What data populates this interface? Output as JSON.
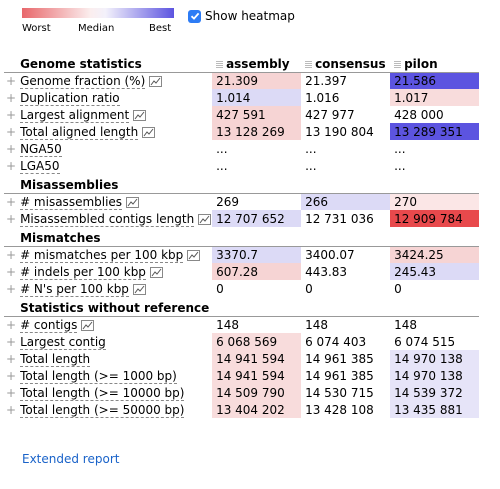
{
  "legend": {
    "worst": "Worst",
    "median": "Median",
    "best": "Best"
  },
  "heatmap_toggle": {
    "label": "Show heatmap",
    "checked": true
  },
  "columns": [
    "assembly",
    "consensus",
    "pilon"
  ],
  "sections": [
    {
      "title": "Genome statistics",
      "rows": [
        {
          "name": "Genome fraction (%)",
          "plot": true,
          "values": [
            "21.309",
            "21.397",
            "21.586"
          ],
          "colors": [
            "#f6d4d4",
            "#ffffff",
            "#5c54e0"
          ]
        },
        {
          "name": "Duplication ratio",
          "plot": false,
          "values": [
            "1.014",
            "1.016",
            "1.017"
          ],
          "colors": [
            "#dcdaf6",
            "#ffffff",
            "#f8dcdc"
          ]
        },
        {
          "name": "Largest alignment",
          "plot": true,
          "values": [
            "427 591",
            "427 977",
            "428 000"
          ],
          "colors": [
            "#f6d4d4",
            "#ffffff",
            "#ffffff"
          ]
        },
        {
          "name": "Total aligned length",
          "plot": true,
          "values": [
            "13 128 269",
            "13 190 804",
            "13 289 351"
          ],
          "colors": [
            "#f6d4d4",
            "#ffffff",
            "#5c54e0"
          ]
        },
        {
          "name": "NGA50",
          "plot": false,
          "values": [
            "...",
            "...",
            "..."
          ],
          "colors": [
            "#ffffff",
            "#ffffff",
            "#ffffff"
          ]
        },
        {
          "name": "LGA50",
          "plot": false,
          "values": [
            "...",
            "...",
            "..."
          ],
          "colors": [
            "#ffffff",
            "#ffffff",
            "#ffffff"
          ]
        }
      ]
    },
    {
      "title": "Misassemblies",
      "rows": [
        {
          "name": "# misassemblies",
          "plot": true,
          "values": [
            "269",
            "266",
            "270"
          ],
          "colors": [
            "#ffffff",
            "#dcdaf6",
            "#fbe6e6"
          ]
        },
        {
          "name": "Misassembled contigs length",
          "plot": true,
          "values": [
            "12 707 652",
            "12 731 036",
            "12 909 784"
          ],
          "colors": [
            "#dcdaf6",
            "#ffffff",
            "#e8494c"
          ]
        }
      ]
    },
    {
      "title": "Mismatches",
      "rows": [
        {
          "name": "# mismatches per 100 kbp",
          "plot": true,
          "values": [
            "3370.7",
            "3400.07",
            "3424.25"
          ],
          "colors": [
            "#dcdaf6",
            "#ffffff",
            "#f6d4d4"
          ]
        },
        {
          "name": "# indels per 100 kbp",
          "plot": true,
          "values": [
            "607.28",
            "443.83",
            "245.43"
          ],
          "colors": [
            "#f6d4d4",
            "#ffffff",
            "#dcdaf6"
          ]
        },
        {
          "name": "# N's per 100 kbp",
          "plot": true,
          "values": [
            "0",
            "0",
            "0"
          ],
          "colors": [
            "#ffffff",
            "#ffffff",
            "#ffffff"
          ]
        }
      ]
    },
    {
      "title": "Statistics without reference",
      "rows": [
        {
          "name": "# contigs",
          "plot": true,
          "values": [
            "148",
            "148",
            "148"
          ],
          "colors": [
            "#ffffff",
            "#ffffff",
            "#ffffff"
          ]
        },
        {
          "name": "Largest contig",
          "plot": false,
          "values": [
            "6 068 569",
            "6 074 403",
            "6 074 515"
          ],
          "colors": [
            "#f8dcdc",
            "#ffffff",
            "#ffffff"
          ]
        },
        {
          "name": "Total length",
          "plot": false,
          "values": [
            "14 941 594",
            "14 961 385",
            "14 970 138"
          ],
          "colors": [
            "#f8dcdc",
            "#ffffff",
            "#e6e4f8"
          ]
        },
        {
          "name": "Total length (>= 1000 bp)",
          "plot": false,
          "values": [
            "14 941 594",
            "14 961 385",
            "14 970 138"
          ],
          "colors": [
            "#f8dcdc",
            "#ffffff",
            "#e6e4f8"
          ]
        },
        {
          "name": "Total length (>= 10000 bp)",
          "plot": false,
          "values": [
            "14 509 790",
            "14 530 715",
            "14 539 372"
          ],
          "colors": [
            "#f8dcdc",
            "#ffffff",
            "#e6e4f8"
          ]
        },
        {
          "name": "Total length (>= 50000 bp)",
          "plot": false,
          "values": [
            "13 404 202",
            "13 428 108",
            "13 435 881"
          ],
          "colors": [
            "#f8dcdc",
            "#ffffff",
            "#e6e4f8"
          ]
        }
      ]
    }
  ],
  "extended_report": "Extended report",
  "icons": {
    "expand": "plus-icon",
    "plot": "plot-icon",
    "drag": "drag-handle-icon"
  }
}
